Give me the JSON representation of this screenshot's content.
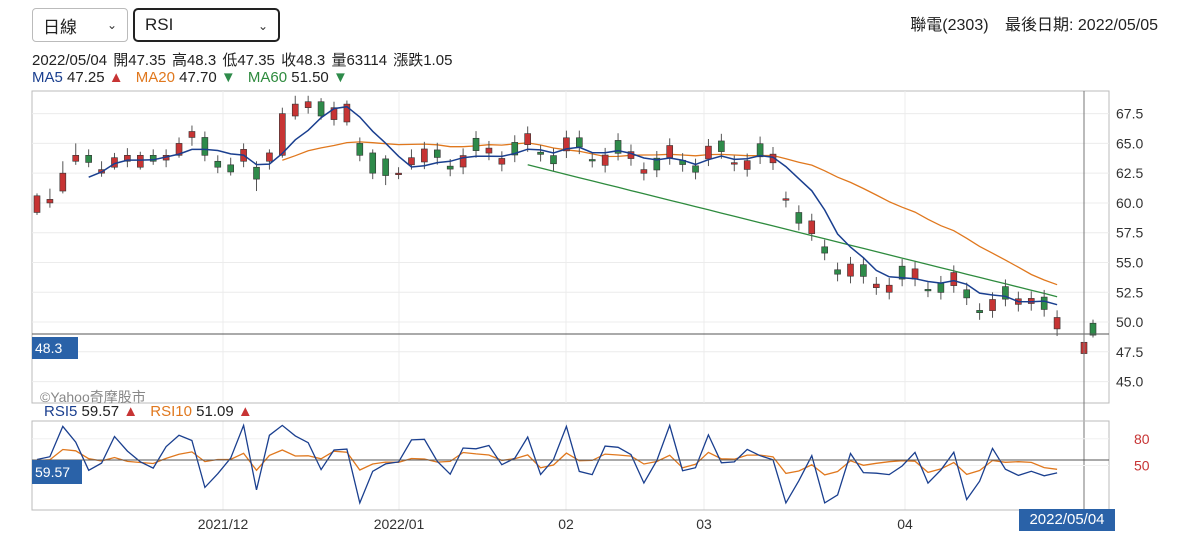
{
  "controls": {
    "period": "日線",
    "indicator": "RSI",
    "caret": "⌄"
  },
  "stock": {
    "name": "聯電(2303)",
    "last_date": "最後日期: 2022/05/05"
  },
  "quote": {
    "date": "2022/05/04",
    "open": "開47.35",
    "high": "高48.3",
    "low": "低47.35",
    "close": "收48.3",
    "volume": "量63114",
    "change": "漲跌1.05"
  },
  "ma": {
    "ma5_label": "MA5",
    "ma5_value": "47.25",
    "ma5_arrow": "▲",
    "ma20_label": "MA20",
    "ma20_value": "47.70",
    "ma20_arrow": "▼",
    "ma60_label": "MA60",
    "ma60_value": "51.50",
    "ma60_arrow": "▼"
  },
  "rsi": {
    "rsi5_label": "RSI5",
    "rsi5_value": "59.57",
    "rsi5_arrow": "▲",
    "rsi10_label": "RSI10",
    "rsi10_value": "51.09",
    "rsi10_arrow": "▲"
  },
  "tags": {
    "price": "48.3",
    "rsi": "59.57",
    "date": "2022/05/04"
  },
  "watermark": "©Yahoo奇摩股市",
  "colors": {
    "up": "#c73434",
    "down": "#2e8b4a",
    "ma5": "#1a3f8f",
    "ma20": "#e0781e",
    "ma60": "#2e8b3e",
    "tag": "#2a62a8"
  },
  "chart_data": {
    "type": "candlestick",
    "price_axis": {
      "ticks": [
        "67.5",
        "65.0",
        "62.5",
        "60.0",
        "57.5",
        "55.0",
        "52.5",
        "50.0",
        "47.5",
        "45.0"
      ],
      "range": [
        43.2,
        69.4
      ]
    },
    "rsi_axis": {
      "ticks": [
        "80",
        "50"
      ],
      "range": [
        0,
        100
      ]
    },
    "date_labels": [
      "2021/12",
      "2022/01",
      "02",
      "03",
      "04"
    ],
    "date_label_indices": [
      12,
      24,
      34,
      42,
      54
    ],
    "candles": [
      {
        "o": 59.2,
        "c": 60.6,
        "h": 60.8,
        "l": 59.0
      },
      {
        "o": 60.0,
        "c": 60.3,
        "h": 61.2,
        "l": 59.6
      },
      {
        "o": 61.0,
        "c": 62.5,
        "h": 63.5,
        "l": 60.8
      },
      {
        "o": 63.5,
        "c": 64.0,
        "h": 65.0,
        "l": 63.2
      },
      {
        "o": 64.0,
        "c": 63.4,
        "h": 64.5,
        "l": 63.0
      },
      {
        "o": 62.5,
        "c": 62.8,
        "h": 63.5,
        "l": 62.2
      },
      {
        "o": 63.0,
        "c": 63.8,
        "h": 64.2,
        "l": 62.8
      },
      {
        "o": 63.5,
        "c": 64.0,
        "h": 64.6,
        "l": 63.0
      },
      {
        "o": 63.0,
        "c": 64.0,
        "h": 64.3,
        "l": 62.8
      },
      {
        "o": 64.0,
        "c": 63.5,
        "h": 64.5,
        "l": 63.2
      },
      {
        "o": 63.6,
        "c": 64.0,
        "h": 64.5,
        "l": 63.0
      },
      {
        "o": 64.0,
        "c": 65.0,
        "h": 65.5,
        "l": 63.8
      },
      {
        "o": 65.5,
        "c": 66.0,
        "h": 66.5,
        "l": 64.8
      },
      {
        "o": 65.5,
        "c": 64.0,
        "h": 66.0,
        "l": 63.5
      },
      {
        "o": 63.5,
        "c": 63.0,
        "h": 64.0,
        "l": 62.5
      },
      {
        "o": 63.2,
        "c": 62.6,
        "h": 63.8,
        "l": 62.3
      },
      {
        "o": 63.5,
        "c": 64.5,
        "h": 65.0,
        "l": 63.0
      },
      {
        "o": 63.0,
        "c": 62.0,
        "h": 63.5,
        "l": 61.0
      },
      {
        "o": 63.5,
        "c": 64.2,
        "h": 64.5,
        "l": 62.8
      },
      {
        "o": 64.0,
        "c": 67.5,
        "h": 68.0,
        "l": 63.8
      },
      {
        "o": 67.3,
        "c": 68.3,
        "h": 69.0,
        "l": 67.0
      },
      {
        "o": 68.0,
        "c": 68.5,
        "h": 69.0,
        "l": 67.5
      },
      {
        "o": 68.5,
        "c": 67.3,
        "h": 68.8,
        "l": 67.0
      },
      {
        "o": 67.0,
        "c": 68.0,
        "h": 68.5,
        "l": 66.5
      },
      {
        "o": 66.8,
        "c": 68.3,
        "h": 68.6,
        "l": 66.5
      },
      {
        "o": 65.0,
        "c": 64.0,
        "h": 65.5,
        "l": 63.5
      },
      {
        "o": 64.2,
        "c": 62.5,
        "h": 64.5,
        "l": 62.0
      },
      {
        "o": 63.7,
        "c": 62.3,
        "h": 64.0,
        "l": 61.5
      },
      {
        "o": 62.5,
        "c": 62.5,
        "h": 63.0,
        "l": 62.0
      },
      {
        "o": 63.2,
        "c": 63.8,
        "h": 64.5,
        "l": 62.8
      }
    ]
  }
}
